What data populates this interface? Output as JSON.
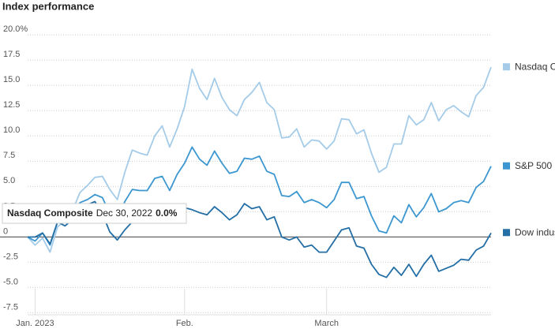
{
  "chart_data": {
    "type": "line",
    "title": "Index performance",
    "categories": [
      null,
      "Jan. 2023",
      null,
      null,
      null,
      null,
      null,
      null,
      null,
      null,
      null,
      null,
      null,
      null,
      null,
      null,
      null,
      null,
      null,
      null,
      null,
      "Feb.",
      null,
      null,
      null,
      null,
      null,
      null,
      null,
      null,
      null,
      null,
      null,
      null,
      null,
      null,
      null,
      null,
      null,
      null,
      "March",
      null,
      null,
      null,
      null,
      null,
      null,
      null,
      null,
      null,
      null,
      null,
      null,
      null,
      null,
      null,
      null,
      null,
      null,
      null,
      null,
      null,
      null
    ],
    "series": [
      {
        "name": "Nasdaq Composite",
        "color": "#a4cbe8",
        "values": [
          0,
          -0.8,
          -0.1,
          -1.5,
          1.0,
          1.6,
          2.6,
          4.4,
          5.1,
          5.9,
          6.0,
          4.7,
          3.7,
          6.4,
          8.6,
          8.3,
          8.1,
          10.0,
          11.0,
          8.9,
          10.7,
          12.9,
          16.6,
          14.7,
          13.6,
          15.7,
          13.8,
          12.6,
          12.0,
          13.6,
          14.3,
          15.3,
          13.3,
          12.6,
          9.8,
          9.9,
          10.7,
          8.9,
          9.6,
          9.5,
          8.7,
          9.5,
          11.7,
          11.6,
          10.2,
          10.6,
          8.3,
          6.4,
          6.9,
          9.2,
          9.2,
          12.0,
          11.1,
          11.6,
          13.3,
          11.5,
          12.6,
          13.0,
          12.4,
          11.9,
          14.0,
          14.8,
          16.8
        ]
      },
      {
        "name": "S&P 500",
        "color": "#3c97d0",
        "values": [
          0,
          -0.4,
          0.4,
          -0.8,
          1.5,
          1.4,
          2.1,
          3.4,
          3.7,
          4.2,
          3.9,
          2.3,
          1.6,
          3.5,
          4.7,
          4.6,
          4.6,
          5.8,
          6.0,
          4.6,
          6.2,
          7.3,
          8.9,
          7.7,
          7.1,
          8.5,
          7.3,
          6.3,
          6.5,
          7.8,
          7.7,
          8.0,
          6.5,
          6.2,
          4.1,
          4.0,
          4.5,
          3.4,
          3.7,
          3.4,
          2.9,
          3.7,
          5.4,
          5.4,
          3.8,
          4.0,
          2.1,
          0.6,
          0.4,
          2.1,
          1.4,
          3.2,
          2.0,
          2.9,
          4.3,
          2.5,
          2.8,
          3.4,
          3.6,
          3.4,
          4.9,
          5.5,
          7.0
        ]
      },
      {
        "name": "Dow industrials",
        "color": "#236ea5",
        "values": [
          0,
          0.0,
          0.4,
          -0.7,
          1.5,
          1.1,
          1.7,
          2.5,
          3.2,
          3.5,
          2.3,
          0.5,
          -0.3,
          0.7,
          1.5,
          1.8,
          1.8,
          2.4,
          2.5,
          1.7,
          2.8,
          2.9,
          2.7,
          2.4,
          2.2,
          3.0,
          2.4,
          1.7,
          2.2,
          3.3,
          2.8,
          3.0,
          1.7,
          2.0,
          0.0,
          -0.3,
          0.0,
          -1.0,
          -0.8,
          -1.5,
          -1.5,
          -0.4,
          0.7,
          0.9,
          -0.9,
          -1.1,
          -2.7,
          -3.7,
          -4.0,
          -3.0,
          -3.8,
          -2.7,
          -3.9,
          -2.7,
          -1.8,
          -3.4,
          -3.1,
          -2.8,
          -2.2,
          -2.3,
          -1.3,
          -0.9,
          0.4
        ]
      }
    ],
    "ylim": [
      -7.7,
      21.5
    ],
    "yticks": [
      {
        "value": 20,
        "label": "20.0%"
      },
      17.5,
      {
        "value": 15,
        "label": "15.0"
      },
      12.5,
      {
        "value": 10,
        "label": "10.0"
      },
      7.5,
      {
        "value": 5,
        "label": "5.0"
      },
      2.5,
      0,
      -2.5,
      {
        "value": -5,
        "label": "-5.0"
      },
      -7.5
    ],
    "grid": true,
    "legend": "right",
    "tooltip": {
      "date": "Dec 30, 2022",
      "label": "0.0%"
    }
  }
}
